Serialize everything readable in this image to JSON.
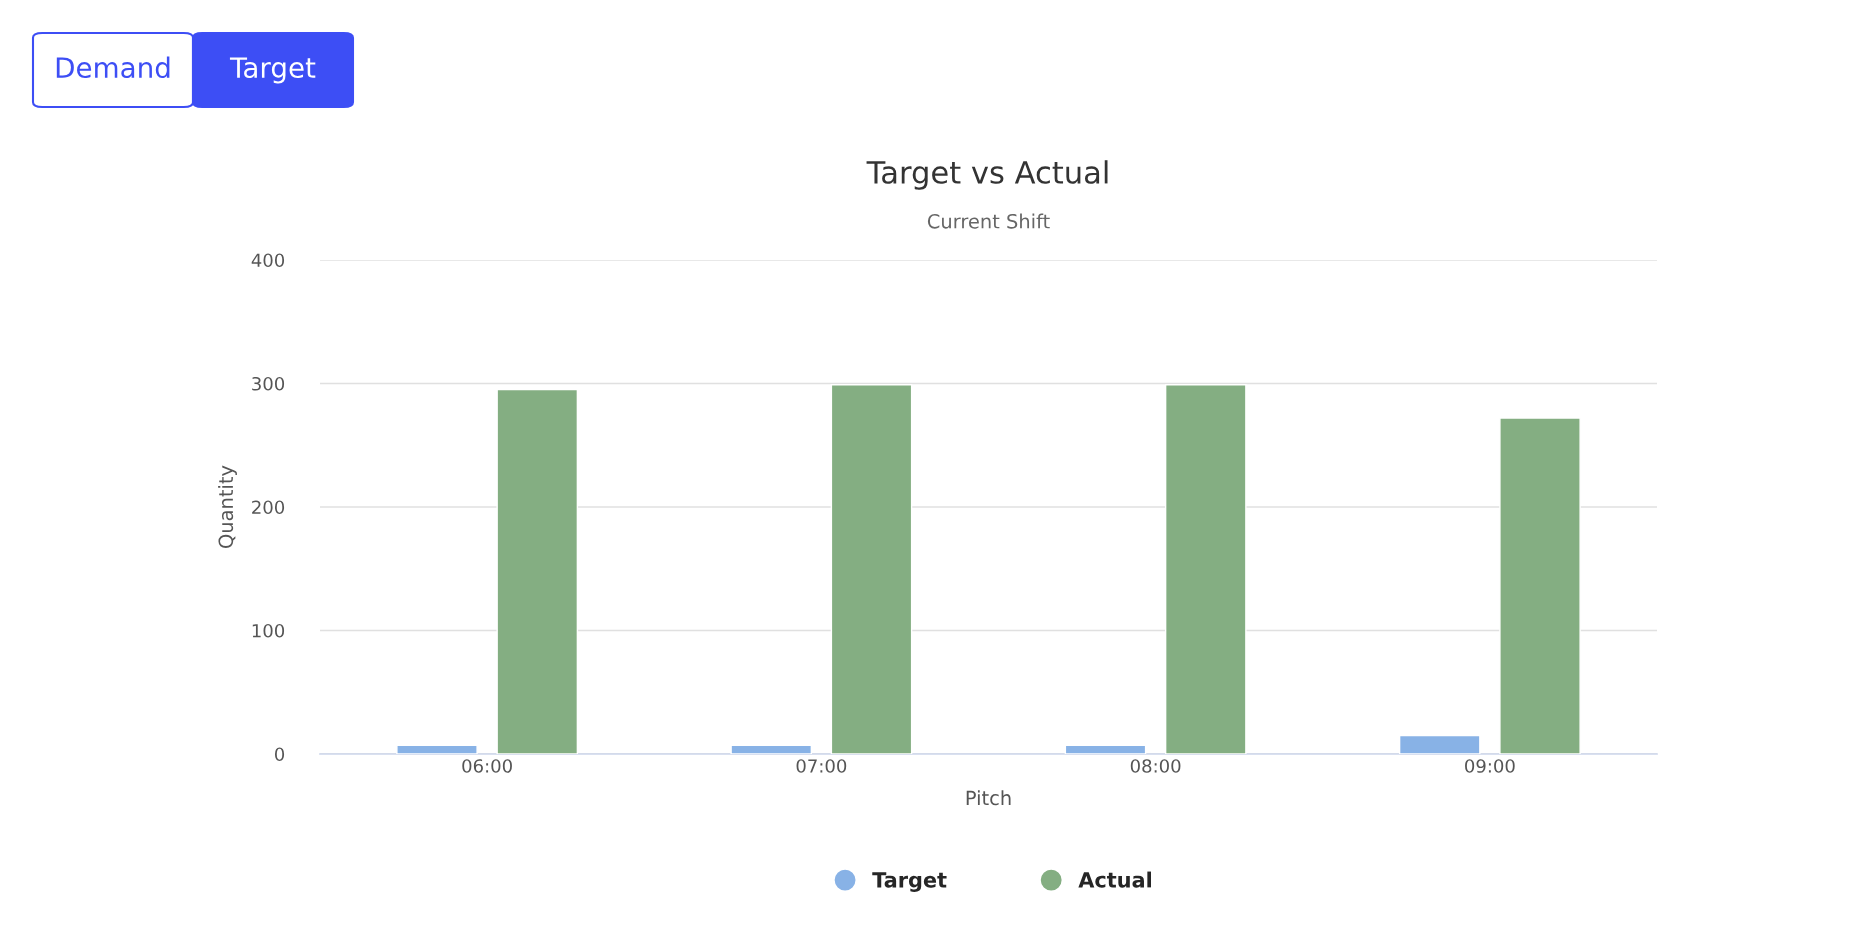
{
  "chart_data": {
    "type": "bar",
    "title": "Target vs Actual",
    "subtitle": "Current Shift",
    "xlabel": "Pitch",
    "ylabel": "Quantity",
    "categories": [
      "06:00",
      "07:00",
      "08:00",
      "09:00"
    ],
    "series": [
      {
        "name": "Target",
        "color": "#88b2e6",
        "values": [
          7,
          7,
          7,
          15
        ]
      },
      {
        "name": "Actual",
        "color": "#84ae82",
        "values": [
          295,
          299,
          299,
          272
        ]
      }
    ],
    "ylim": [
      0,
      400
    ],
    "yticks": [
      0,
      100,
      200,
      300,
      400
    ],
    "grid": "y",
    "legend": "bottom",
    "annotations": [
      "Demand",
      "Target"
    ]
  }
}
